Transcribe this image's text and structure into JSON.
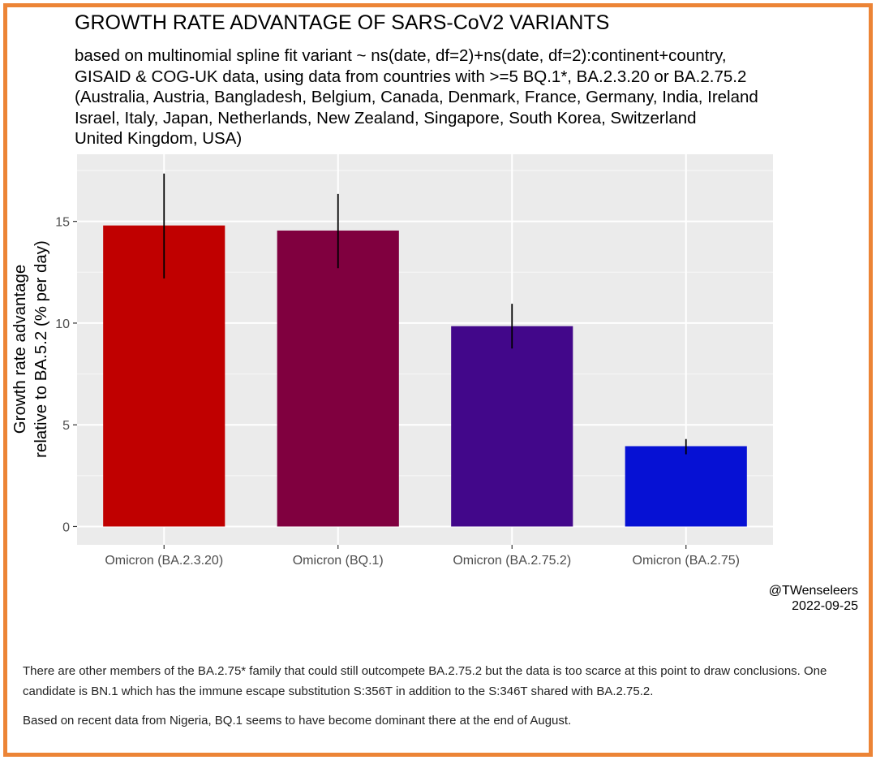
{
  "chart_data": {
    "type": "bar",
    "title": "GROWTH RATE ADVANTAGE OF SARS-CoV2 VARIANTS",
    "subtitle_lines": [
      "based on multinomial spline fit variant ~ ns(date, df=2)+ns(date, df=2):continent+country,",
      "GISAID & COG-UK data, using data from countries with >=5 BQ.1*, BA.2.3.20 or BA.2.75.2",
      "(Australia, Austria, Bangladesh, Belgium, Canada, Denmark, France, Germany, India, Ireland",
      "Israel, Italy, Japan, Netherlands, New Zealand, Singapore, South Korea, Switzerland",
      "United Kingdom, USA)"
    ],
    "ylabel_lines": [
      "Growth rate advantage",
      "relative to BA.5.2 (% per day)"
    ],
    "xlabel": "",
    "categories": [
      "Omicron (BA.2.3.20)",
      "Omicron (BQ.1)",
      "Omicron (BA.2.75.2)",
      "Omicron (BA.2.75)"
    ],
    "values": [
      14.8,
      14.55,
      9.85,
      3.95
    ],
    "ci_low": [
      12.2,
      12.7,
      8.75,
      3.55
    ],
    "ci_high": [
      17.35,
      16.35,
      10.95,
      4.3
    ],
    "colors": [
      "#c00000",
      "#80003f",
      "#42078a",
      "#0611d4"
    ],
    "ylim": [
      -0.9,
      18.3
    ],
    "yticks": [
      0,
      5,
      10,
      15
    ],
    "ytick_labels": [
      "0",
      "5",
      "10",
      "15"
    ],
    "grid": true,
    "legend": "none"
  },
  "credit": {
    "handle": "@TWenseleers",
    "date": "2022-09-25"
  },
  "notes": {
    "paragraph1": "There are other members of the BA.2.75* family that could still outcompete BA.2.75.2 but the data is too scarce at this point to draw conclusions. One candidate is BN.1 which has the immune escape substitution S:356T in addition to the S:346T shared with BA.2.75.2.",
    "paragraph2": "Based on recent data from Nigeria, BQ.1 seems to have become dominant there at the end of August."
  }
}
